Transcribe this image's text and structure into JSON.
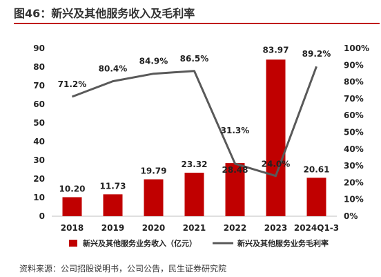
{
  "title": "图46：新兴及其他服务收入及毛利率",
  "source": "资料来源：公司招股说明书，公司公告，民生证券研究院",
  "colors": {
    "bar": "#c00000",
    "line": "#595959",
    "title_rule": "#c00000"
  },
  "chart_data": {
    "type": "bar",
    "categories": [
      "2018",
      "2019",
      "2020",
      "2021",
      "2022",
      "2023",
      "2024Q1-3"
    ],
    "series": [
      {
        "name": "新兴及其他服务业务收入（亿元）",
        "type": "bar",
        "axis": "left",
        "values": [
          10.2,
          11.73,
          19.79,
          23.32,
          28.48,
          83.97,
          20.61
        ],
        "labels": [
          "10.20",
          "11.73",
          "19.79",
          "23.32",
          "28.48",
          "83.97",
          "20.61"
        ]
      },
      {
        "name": "新兴及其他服务业务毛利率",
        "type": "line",
        "axis": "right",
        "values": [
          71.2,
          80.4,
          84.9,
          86.5,
          31.3,
          24.0,
          89.2
        ],
        "labels": [
          "71.2%",
          "80.4%",
          "84.9%",
          "86.5%",
          "31.3%",
          "24.0%",
          "89.2%"
        ]
      }
    ],
    "y_left": {
      "min": 0,
      "max": 90,
      "step": 10
    },
    "y_right": {
      "min": 0,
      "max": 100,
      "step": 10,
      "unit": "%"
    },
    "grid": false,
    "legend": "bottom"
  }
}
